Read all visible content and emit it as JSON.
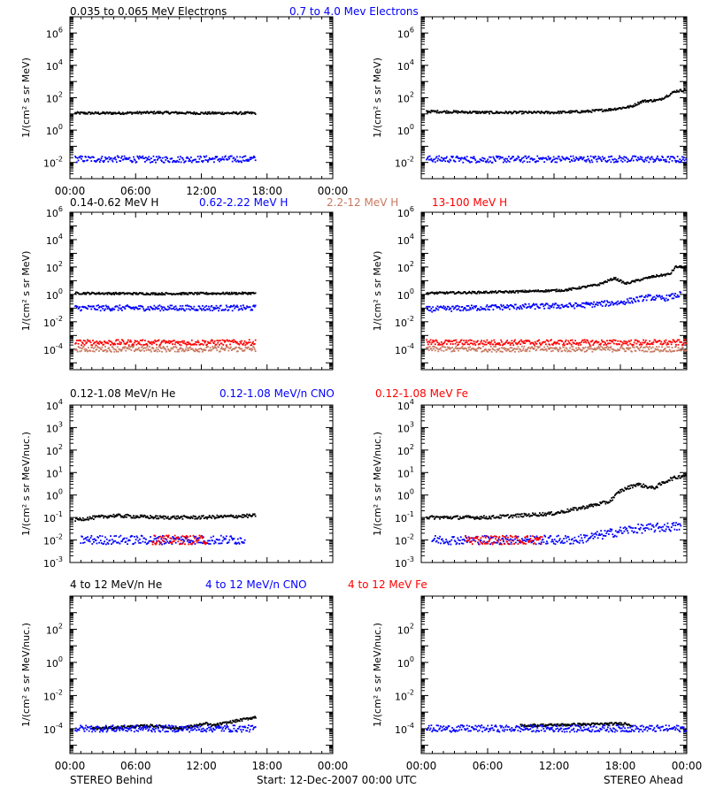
{
  "colors": {
    "black": "#000000",
    "blue": "#0000ff",
    "salmon": "#c87860",
    "red": "#ff0000"
  },
  "footer": {
    "left": "STEREO Behind",
    "center": "Start: 12-Dec-2007 00:00 UTC",
    "right": "STEREO Ahead"
  },
  "chart_data": [
    {
      "type": "scatter",
      "row": 1,
      "side": "left",
      "title_items": [
        {
          "text": "0.035 to 0.065 MeV Electrons",
          "color": "black"
        },
        {
          "text": "0.7 to 4.0 Mev Electrons",
          "color": "blue"
        }
      ],
      "ylabel": "1/(cm² s sr MeV)",
      "yscale": "log",
      "ylim_exp": [
        -3,
        7
      ],
      "ytick_labels": [
        "10^-2",
        "10^0",
        "10^2",
        "10^4",
        "10^6"
      ],
      "xlim_hours": [
        0,
        24
      ],
      "xtick_labels": [
        "00:00",
        "06:00",
        "12:00",
        "18:00",
        "00:00"
      ],
      "series": [
        {
          "color": "black",
          "points": [
            [
              0.5,
              11
            ],
            [
              4,
              11
            ],
            [
              8,
              12
            ],
            [
              12,
              11
            ],
            [
              17,
              11
            ]
          ]
        },
        {
          "color": "blue",
          "points": [
            [
              0.5,
              0.016
            ],
            [
              4,
              0.016
            ],
            [
              8,
              0.015
            ],
            [
              12,
              0.016
            ],
            [
              17,
              0.016
            ]
          ]
        }
      ]
    },
    {
      "type": "scatter",
      "row": 1,
      "side": "right",
      "title_items": [],
      "ylabel": "1/(cm² s sr MeV)",
      "yscale": "log",
      "ylim_exp": [
        -3,
        7
      ],
      "ytick_labels": [
        "10^-2",
        "10^0",
        "10^2",
        "10^4",
        "10^6"
      ],
      "xlim_hours": [
        0,
        24
      ],
      "xtick_labels": [],
      "series": [
        {
          "color": "black",
          "points": [
            [
              0.5,
              14
            ],
            [
              6,
              12
            ],
            [
              12,
              12
            ],
            [
              15,
              14
            ],
            [
              17,
              18
            ],
            [
              19,
              28
            ],
            [
              20,
              60
            ],
            [
              21.5,
              70
            ],
            [
              23,
              250
            ],
            [
              24,
              300
            ]
          ]
        },
        {
          "color": "blue",
          "points": [
            [
              0.5,
              0.016
            ],
            [
              6,
              0.015
            ],
            [
              12,
              0.016
            ],
            [
              18,
              0.016
            ],
            [
              24,
              0.015
            ]
          ]
        }
      ]
    },
    {
      "type": "scatter",
      "row": 2,
      "side": "left",
      "title_items": [
        {
          "text": "0.14-0.62 MeV H",
          "color": "black"
        },
        {
          "text": "0.62-2.22 MeV H",
          "color": "blue"
        },
        {
          "text": "2.2-12 MeV H",
          "color": "salmon"
        },
        {
          "text": "13-100 MeV H",
          "color": "red"
        }
      ],
      "ylabel": "1/(cm² s sr MeV)",
      "yscale": "log",
      "ylim_exp": [
        -5.5,
        6
      ],
      "ytick_labels": [
        "10^-4",
        "10^-2",
        "10^0",
        "10^2",
        "10^4",
        "10^6"
      ],
      "xlim_hours": [
        0,
        24
      ],
      "xtick_labels": [],
      "series": [
        {
          "color": "black",
          "points": [
            [
              0.5,
              1.2
            ],
            [
              8,
              1.1
            ],
            [
              17,
              1.2
            ]
          ]
        },
        {
          "color": "blue",
          "points": [
            [
              0.5,
              0.1
            ],
            [
              8,
              0.1
            ],
            [
              17,
              0.1
            ]
          ]
        },
        {
          "color": "salmon",
          "points": [
            [
              0.5,
              0.0001
            ],
            [
              8,
              0.0001
            ],
            [
              17,
              0.0001
            ]
          ]
        },
        {
          "color": "red",
          "points": [
            [
              0.5,
              0.0003
            ],
            [
              8,
              0.0003
            ],
            [
              17,
              0.0003
            ]
          ]
        }
      ]
    },
    {
      "type": "scatter",
      "row": 2,
      "side": "right",
      "title_items": [],
      "ylabel": "1/(cm² s sr MeV)",
      "yscale": "log",
      "ylim_exp": [
        -5.5,
        6
      ],
      "ytick_labels": [
        "10^-4",
        "10^-2",
        "10^0",
        "10^2",
        "10^4",
        "10^6"
      ],
      "xlim_hours": [
        0,
        24
      ],
      "xtick_labels": [],
      "series": [
        {
          "color": "black",
          "points": [
            [
              0.5,
              1.2
            ],
            [
              8,
              1.5
            ],
            [
              13,
              2
            ],
            [
              16,
              5
            ],
            [
              17.5,
              15
            ],
            [
              18.5,
              6
            ],
            [
              19.5,
              10
            ],
            [
              21,
              20
            ],
            [
              22.5,
              30
            ],
            [
              23,
              100
            ],
            [
              24,
              100
            ]
          ]
        },
        {
          "color": "blue",
          "points": [
            [
              0.5,
              0.08
            ],
            [
              8,
              0.12
            ],
            [
              14,
              0.15
            ],
            [
              18,
              0.25
            ],
            [
              19,
              0.35
            ],
            [
              20.5,
              0.6
            ],
            [
              22,
              0.5
            ],
            [
              23.5,
              1
            ]
          ]
        },
        {
          "color": "salmon",
          "points": [
            [
              0.5,
              0.0001
            ],
            [
              12,
              0.0001
            ],
            [
              24,
              0.0001
            ]
          ]
        },
        {
          "color": "red",
          "points": [
            [
              0.5,
              0.0003
            ],
            [
              12,
              0.0003
            ],
            [
              24,
              0.0003
            ]
          ]
        }
      ]
    },
    {
      "type": "scatter",
      "row": 3,
      "side": "left",
      "title_items": [
        {
          "text": "0.12-1.08 MeV/n He",
          "color": "black"
        },
        {
          "text": "0.12-1.08 MeV/n CNO",
          "color": "blue"
        },
        {
          "text": "0.12-1.08 MeV Fe",
          "color": "red"
        }
      ],
      "ylabel": "1/(cm² s sr MeV/nuc.)",
      "yscale": "log",
      "ylim_exp": [
        -3,
        4
      ],
      "ytick_labels": [
        "10^-3",
        "10^-2",
        "10^-1",
        "10^0",
        "10^1",
        "10^2",
        "10^3",
        "10^4"
      ],
      "xlim_hours": [
        0,
        24
      ],
      "xtick_labels": [],
      "series": [
        {
          "color": "black",
          "points": [
            [
              0.5,
              0.08
            ],
            [
              4,
              0.12
            ],
            [
              8,
              0.1
            ],
            [
              12,
              0.1
            ],
            [
              17,
              0.12
            ]
          ]
        },
        {
          "color": "blue",
          "points": [
            [
              1,
              0.01
            ],
            [
              6,
              0.01
            ],
            [
              11,
              0.01
            ],
            [
              16,
              0.01
            ]
          ]
        },
        {
          "color": "red",
          "points": [
            [
              7.5,
              0.01
            ],
            [
              12.5,
              0.01
            ]
          ]
        }
      ]
    },
    {
      "type": "scatter",
      "row": 3,
      "side": "right",
      "title_items": [],
      "ylabel": "1/(cm² s sr MeV/nuc.)",
      "yscale": "log",
      "ylim_exp": [
        -3,
        4
      ],
      "ytick_labels": [
        "10^-3",
        "10^-2",
        "10^-1",
        "10^0",
        "10^1",
        "10^2",
        "10^3",
        "10^4"
      ],
      "xlim_hours": [
        0,
        24
      ],
      "xtick_labels": [],
      "series": [
        {
          "color": "black",
          "points": [
            [
              0.5,
              0.1
            ],
            [
              6,
              0.1
            ],
            [
              12,
              0.15
            ],
            [
              15,
              0.3
            ],
            [
              17,
              0.5
            ],
            [
              18,
              1.5
            ],
            [
              19.5,
              3
            ],
            [
              21,
              2
            ],
            [
              22.5,
              5
            ],
            [
              24,
              8
            ]
          ]
        },
        {
          "color": "blue",
          "points": [
            [
              1,
              0.01
            ],
            [
              8,
              0.01
            ],
            [
              14,
              0.01
            ],
            [
              19,
              0.03
            ],
            [
              23.5,
              0.04
            ]
          ]
        },
        {
          "color": "red",
          "points": [
            [
              4,
              0.01
            ],
            [
              11,
              0.01
            ]
          ]
        }
      ]
    },
    {
      "type": "scatter",
      "row": 4,
      "side": "left",
      "title_items": [
        {
          "text": "4 to 12 MeV/n He",
          "color": "black"
        },
        {
          "text": "4 to 12 MeV/n CNO",
          "color": "blue"
        },
        {
          "text": "4 to 12 MeV Fe",
          "color": "red"
        }
      ],
      "ylabel": "1/(cm² s sr MeV/nuc.)",
      "yscale": "log",
      "ylim_exp": [
        -5.5,
        4
      ],
      "ytick_labels": [
        "10^-4",
        "10^-2",
        "10^0",
        "10^2"
      ],
      "xlim_hours": [
        0,
        24
      ],
      "xtick_labels": [
        "00:00",
        "06:00",
        "12:00",
        "18:00",
        "00:00"
      ],
      "series": [
        {
          "color": "black",
          "points": [
            [
              2,
              0.0001
            ],
            [
              7.5,
              0.00015
            ],
            [
              10,
              0.0001
            ],
            [
              12.5,
              0.0002
            ],
            [
              13,
              0.00015
            ],
            [
              17,
              0.0005
            ]
          ]
        },
        {
          "color": "blue",
          "points": [
            [
              0.5,
              0.0001
            ],
            [
              4,
              0.0001
            ],
            [
              8,
              0.0001
            ],
            [
              12,
              0.0001
            ],
            [
              17,
              0.0001
            ]
          ]
        }
      ]
    },
    {
      "type": "scatter",
      "row": 4,
      "side": "right",
      "title_items": [],
      "ylabel": "1/(cm² s sr MeV/nuc.)",
      "yscale": "log",
      "ylim_exp": [
        -5.5,
        4
      ],
      "ytick_labels": [
        "10^-4",
        "10^-2",
        "10^0",
        "10^2"
      ],
      "xlim_hours": [
        0,
        24
      ],
      "xtick_labels": [
        "00:00",
        "06:00",
        "12:00",
        "18:00",
        "00:00"
      ],
      "series": [
        {
          "color": "black",
          "points": [
            [
              9,
              0.00015
            ],
            [
              18.5,
              0.0002
            ],
            [
              19.2,
              0.00015
            ]
          ]
        },
        {
          "color": "blue",
          "points": [
            [
              0.5,
              0.0001
            ],
            [
              6,
              0.0001
            ],
            [
              12,
              0.0001
            ],
            [
              18,
              0.0001
            ],
            [
              24,
              0.0001
            ]
          ]
        }
      ]
    }
  ]
}
